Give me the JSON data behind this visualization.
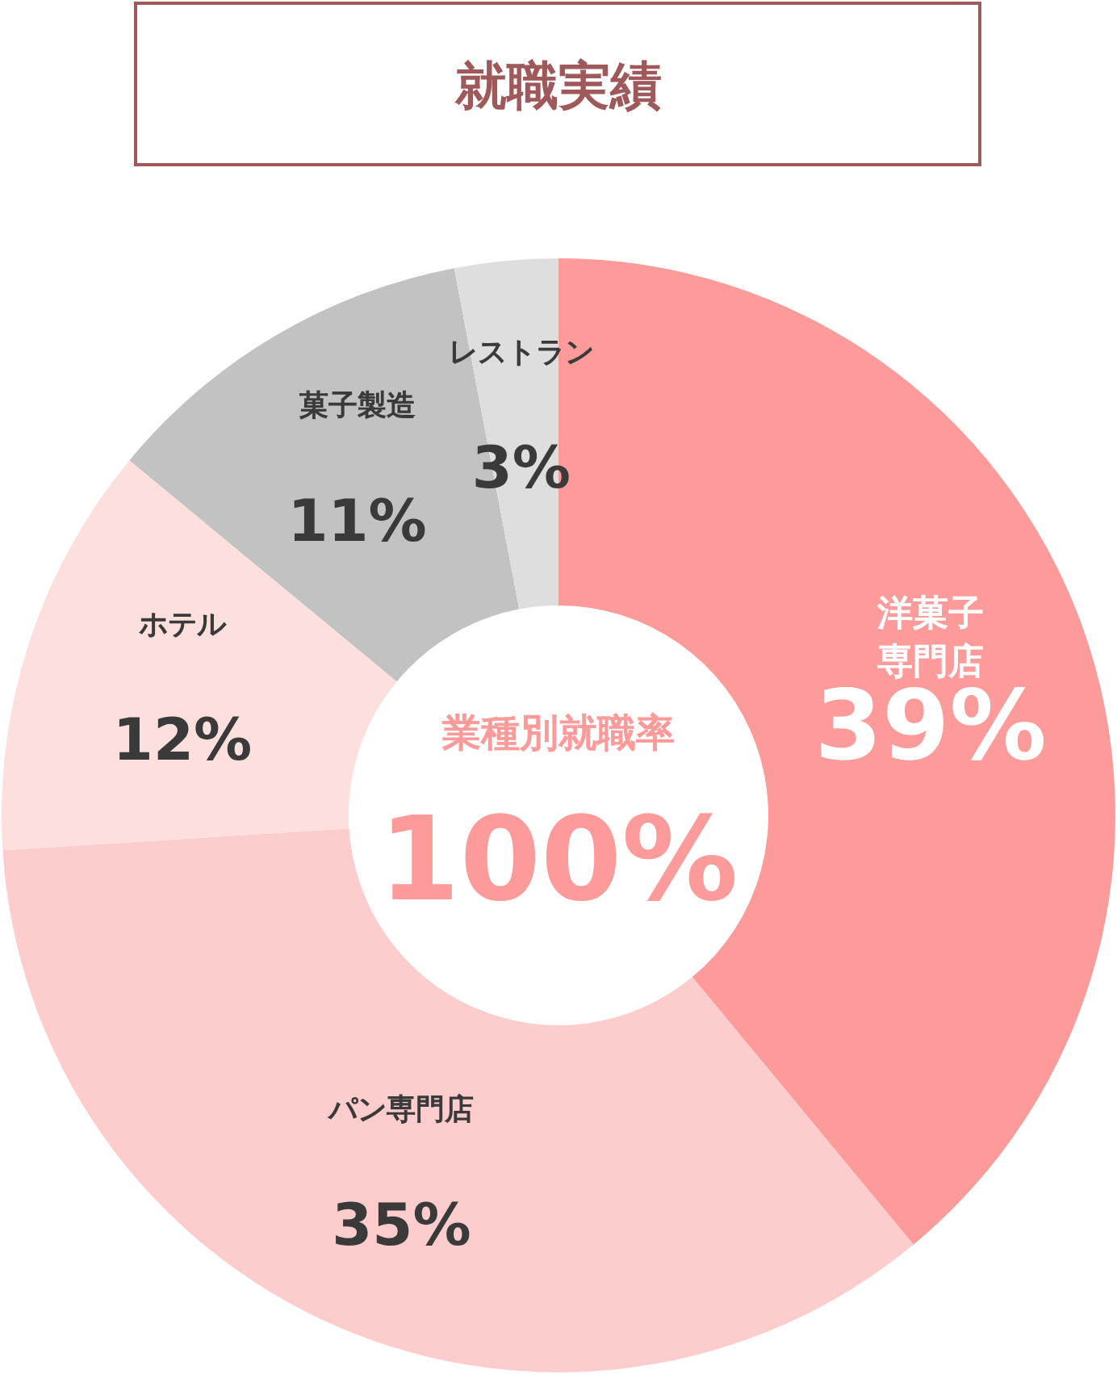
{
  "chart_data": {
    "type": "donut",
    "title": "就職実績",
    "categories": [
      "洋菓子専門店",
      "パン専門店",
      "ホテル",
      "菓子製造",
      "レストラン"
    ],
    "values": [
      39,
      35,
      12,
      11,
      3
    ],
    "colors": [
      "#fd9a9a",
      "#fdcdcd",
      "#fde0de",
      "#c2c2c2",
      "#dedede"
    ],
    "value_labels": [
      "39%",
      "35%",
      "12%",
      "11%",
      "3%"
    ],
    "annotations": [
      "業種別就職率",
      "100%"
    ]
  }
}
